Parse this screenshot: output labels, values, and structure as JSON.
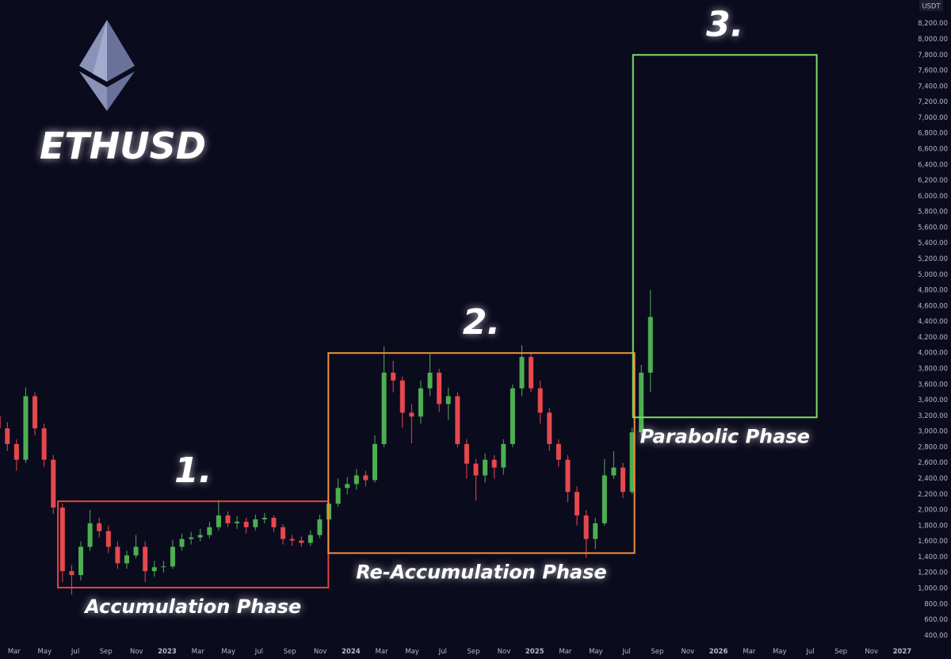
{
  "chart_data": {
    "type": "candlestick",
    "title": "ETHUSD",
    "y_axis_unit": "USDT",
    "up_color": "#4caf50",
    "down_color": "#e5484d",
    "xlim": [
      2022.09,
      2027.05
    ],
    "ylim": [
      100,
      8500
    ],
    "x": [
      2022.08,
      2022.13,
      2022.18,
      2022.23,
      2022.28,
      2022.33,
      2022.38,
      2022.43,
      2022.48,
      2022.53,
      2022.58,
      2022.63,
      2022.68,
      2022.73,
      2022.78,
      2022.83,
      2022.88,
      2022.93,
      2022.98,
      2023.03,
      2023.08,
      2023.13,
      2023.18,
      2023.23,
      2023.28,
      2023.33,
      2023.38,
      2023.43,
      2023.48,
      2023.53,
      2023.58,
      2023.63,
      2023.68,
      2023.73,
      2023.78,
      2023.83,
      2023.88,
      2023.93,
      2023.98,
      2024.03,
      2024.08,
      2024.13,
      2024.18,
      2024.23,
      2024.28,
      2024.33,
      2024.38,
      2024.43,
      2024.48,
      2024.53,
      2024.58,
      2024.63,
      2024.68,
      2024.73,
      2024.78,
      2024.83,
      2024.88,
      2024.93,
      2024.98,
      2025.03,
      2025.08,
      2025.13,
      2025.18,
      2025.23,
      2025.28,
      2025.33,
      2025.38,
      2025.43,
      2025.48,
      2025.53,
      2025.58,
      2025.63
    ],
    "open": [
      3200,
      3040,
      2840,
      2640,
      3450,
      3040,
      2640,
      2030,
      1220,
      1170,
      1530,
      1830,
      1730,
      1530,
      1320,
      1420,
      1530,
      1220,
      1270,
      1280,
      1530,
      1630,
      1650,
      1680,
      1780,
      1930,
      1830,
      1850,
      1780,
      1880,
      1900,
      1780,
      1630,
      1610,
      1580,
      1680,
      1880,
      2080,
      2280,
      2330,
      2440,
      2380,
      2840,
      3750,
      3650,
      3240,
      3190,
      3550,
      3750,
      3350,
      3450,
      2840,
      2590,
      2440,
      2640,
      2540,
      2840,
      3550,
      3950,
      3550,
      3240,
      2840,
      2640,
      2230,
      1930,
      1630,
      1830,
      2440,
      2540,
      2230,
      2990,
      3750
    ],
    "high": [
      3300,
      3120,
      2900,
      3560,
      3500,
      3100,
      2700,
      2080,
      1300,
      1600,
      2000,
      1900,
      1800,
      1600,
      1480,
      1680,
      1600,
      1350,
      1350,
      1620,
      1700,
      1720,
      1760,
      1850,
      2130,
      1980,
      1920,
      1900,
      1940,
      1960,
      1930,
      1820,
      1680,
      1660,
      1740,
      1940,
      2120,
      2400,
      2420,
      2520,
      2500,
      2950,
      4080,
      3900,
      3700,
      3350,
      3650,
      3990,
      3800,
      3560,
      3500,
      2900,
      2650,
      2720,
      2700,
      2900,
      3600,
      4100,
      4000,
      3650,
      3300,
      2900,
      2700,
      2300,
      2000,
      1900,
      2650,
      2750,
      2600,
      3050,
      3850,
      4800
    ],
    "low": [
      2950,
      2750,
      2500,
      2600,
      2950,
      2550,
      1950,
      1080,
      920,
      1100,
      1480,
      1650,
      1450,
      1250,
      1250,
      1380,
      1080,
      1150,
      1200,
      1250,
      1480,
      1560,
      1600,
      1640,
      1740,
      1780,
      1760,
      1700,
      1740,
      1830,
      1720,
      1560,
      1540,
      1530,
      1540,
      1640,
      1840,
      2040,
      2200,
      2260,
      2300,
      2350,
      2800,
      3500,
      3050,
      2850,
      3100,
      3450,
      3250,
      3150,
      2800,
      2400,
      2120,
      2350,
      2400,
      2450,
      2800,
      3450,
      3500,
      3100,
      2750,
      2550,
      2100,
      1800,
      1390,
      1500,
      1800,
      2400,
      2150,
      2200,
      2950,
      3500
    ],
    "close": [
      3040,
      2840,
      2640,
      3450,
      3040,
      2640,
      2030,
      1220,
      1170,
      1530,
      1830,
      1730,
      1530,
      1320,
      1420,
      1530,
      1220,
      1270,
      1280,
      1530,
      1630,
      1650,
      1680,
      1780,
      1930,
      1830,
      1850,
      1780,
      1880,
      1900,
      1780,
      1630,
      1610,
      1580,
      1680,
      1880,
      2080,
      2280,
      2330,
      2440,
      2380,
      2840,
      3750,
      3650,
      3240,
      3190,
      3550,
      3750,
      3350,
      3450,
      2840,
      2590,
      2440,
      2640,
      2540,
      2840,
      3550,
      3950,
      3550,
      3240,
      2840,
      2640,
      2230,
      1930,
      1630,
      1830,
      2440,
      2540,
      2230,
      2990,
      3750,
      4460
    ],
    "xticks": [
      {
        "value": 2022.167,
        "label": "Mar"
      },
      {
        "value": 2022.333,
        "label": "May"
      },
      {
        "value": 2022.5,
        "label": "Jul"
      },
      {
        "value": 2022.667,
        "label": "Sep"
      },
      {
        "value": 2022.833,
        "label": "Nov"
      },
      2023,
      {
        "value": 2023.167,
        "label": "Mar"
      },
      {
        "value": 2023.333,
        "label": "May"
      },
      {
        "value": 2023.5,
        "label": "Jul"
      },
      {
        "value": 2023.667,
        "label": "Sep"
      },
      {
        "value": 2023.833,
        "label": "Nov"
      },
      2024,
      {
        "value": 2024.167,
        "label": "Mar"
      },
      {
        "value": 2024.333,
        "label": "May"
      },
      {
        "value": 2024.5,
        "label": "Jul"
      },
      {
        "value": 2024.667,
        "label": "Sep"
      },
      {
        "value": 2024.833,
        "label": "Nov"
      },
      2025,
      {
        "value": 2025.167,
        "label": "Mar"
      },
      {
        "value": 2025.333,
        "label": "May"
      },
      {
        "value": 2025.5,
        "label": "Jul"
      },
      {
        "value": 2025.667,
        "label": "Sep"
      },
      {
        "value": 2025.833,
        "label": "Nov"
      },
      2026,
      {
        "value": 2026.167,
        "label": "Mar"
      },
      {
        "value": 2026.333,
        "label": "May"
      },
      {
        "value": 2026.5,
        "label": "Jul"
      },
      {
        "value": 2026.667,
        "label": "Sep"
      },
      {
        "value": 2026.833,
        "label": "Nov"
      },
      2027
    ],
    "yticks": [
      {
        "value": 400,
        "label": "400.00"
      },
      {
        "value": 600,
        "label": "600.00"
      },
      {
        "value": 800,
        "label": "800.00"
      },
      {
        "value": 1000,
        "label": "1,000.00"
      },
      {
        "value": 1200,
        "label": "1,200.00"
      },
      {
        "value": 1400,
        "label": "1,400.00"
      },
      {
        "value": 1600,
        "label": "1,600.00"
      },
      {
        "value": 1800,
        "label": "1,800.00"
      },
      {
        "value": 2000,
        "label": "2,000.00"
      },
      {
        "value": 2200,
        "label": "2,200.00"
      },
      {
        "value": 2400,
        "label": "2,400.00"
      },
      {
        "value": 2600,
        "label": "2,600.00"
      },
      {
        "value": 2800,
        "label": "2,800.00"
      },
      {
        "value": 3000,
        "label": "3,000.00"
      },
      {
        "value": 3200,
        "label": "3,200.00"
      },
      {
        "value": 3400,
        "label": "3,400.00"
      },
      {
        "value": 3600,
        "label": "3,600.00"
      },
      {
        "value": 3800,
        "label": "3,800.00"
      },
      {
        "value": 4000,
        "label": "4,000.00"
      },
      {
        "value": 4200,
        "label": "4,200.00"
      },
      {
        "value": 4400,
        "label": "4,400.00"
      },
      {
        "value": 4600,
        "label": "4,600.00"
      },
      {
        "value": 4800,
        "label": "4,800.00"
      },
      {
        "value": 5000,
        "label": "5,000.00"
      },
      {
        "value": 5200,
        "label": "5,200.00"
      },
      {
        "value": 5400,
        "label": "5,400.00"
      },
      {
        "value": 5600,
        "label": "5,600.00"
      },
      {
        "value": 5800,
        "label": "5,800.00"
      },
      {
        "value": 6000,
        "label": "6,000.00"
      },
      {
        "value": 6200,
        "label": "6,200.00"
      },
      {
        "value": 6400,
        "label": "6,400.00"
      },
      {
        "value": 6600,
        "label": "6,600.00"
      },
      {
        "value": 6800,
        "label": "6,800.00"
      },
      {
        "value": 7000,
        "label": "7,000.00"
      },
      {
        "value": 7200,
        "label": "7,200.00"
      },
      {
        "value": 7400,
        "label": "7,400.00"
      },
      {
        "value": 7600,
        "label": "7,600.00"
      },
      {
        "value": 7800,
        "label": "7,800.00"
      },
      {
        "value": 8000,
        "label": "8,000.00"
      },
      {
        "value": 8200,
        "label": "8,200.00"
      }
    ],
    "annotations": [
      {
        "label": "1.",
        "caption": "Accumulation Phase",
        "x": [
          2022.405,
          2023.877
        ],
        "y": [
          1010,
          2110
        ],
        "color": "#e0453f"
      },
      {
        "label": "2.",
        "caption": "Re-Accumulation Phase",
        "x": [
          2023.877,
          2025.543
        ],
        "y": [
          1450,
          4000
        ],
        "color": "#f0923a"
      },
      {
        "label": "3.",
        "caption": "Parabolic Phase",
        "x": [
          2025.535,
          2026.535
        ],
        "y": [
          3180,
          7800
        ],
        "color": "#7ddc6a"
      }
    ]
  }
}
